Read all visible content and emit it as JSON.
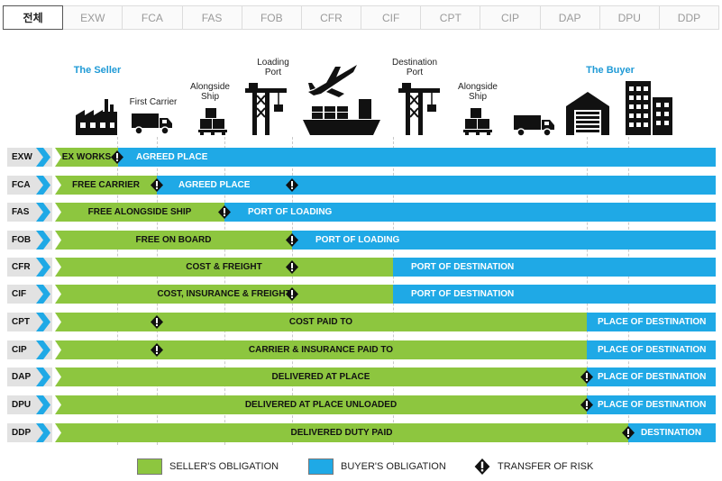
{
  "tabs": [
    "전체",
    "EXW",
    "FCA",
    "FAS",
    "FOB",
    "CFR",
    "CIF",
    "CPT",
    "CIP",
    "DAP",
    "DPU",
    "DDP"
  ],
  "header": {
    "seller": "The Seller",
    "first_carrier": "First Carrier",
    "alongside_ship_1": "Alongside Ship",
    "loading_port": "Loading Port",
    "destination_port": "Destination Port",
    "alongside_ship_2": "Alongside Ship",
    "buyer": "The Buyer"
  },
  "rows": [
    {
      "code": "EXW",
      "seller": "EX WORKS",
      "buyer": "AGREED PLACE"
    },
    {
      "code": "FCA",
      "seller": "FREE CARRIER",
      "buyer": "AGREED PLACE"
    },
    {
      "code": "FAS",
      "seller": "FREE ALONGSIDE SHIP",
      "buyer": "PORT OF LOADING"
    },
    {
      "code": "FOB",
      "seller": "FREE  ON BOARD",
      "buyer": "PORT OF LOADING"
    },
    {
      "code": "CFR",
      "seller": "COST & FREIGHT",
      "buyer": "PORT OF DESTINATION"
    },
    {
      "code": "CIF",
      "seller": "COST, INSURANCE & FREIGHT",
      "buyer": "PORT OF DESTINATION"
    },
    {
      "code": "CPT",
      "seller": "COST PAID TO",
      "buyer": "PLACE OF DESTINATION"
    },
    {
      "code": "CIP",
      "seller": "CARRIER & INSURANCE PAID TO",
      "buyer": "PLACE OF DESTINATION"
    },
    {
      "code": "DAP",
      "seller": "DELIVERED AT PLACE",
      "buyer": "PLACE OF DESTINATION"
    },
    {
      "code": "DPU",
      "seller": "DELIVERED AT PLACE UNLOADED",
      "buyer": "PLACE OF DESTINATION"
    },
    {
      "code": "DDP",
      "seller": "DELIVERED DUTY PAID",
      "buyer": "DESTINATION"
    }
  ],
  "legend": {
    "seller": "SELLER'S OBLIGATION",
    "buyer": "BUYER'S OBLIGATION",
    "risk": "TRANSFER OF RISK"
  },
  "colors": {
    "seller": "#8dc63f",
    "buyer": "#1fa9e6",
    "code_bg": "#e2e2e2",
    "party_label": "#1f9ad6"
  },
  "icons": [
    "factory-icon",
    "truck-icon",
    "pallet-boxes-icon",
    "crane-icon",
    "airplane-icon",
    "cargo-ship-icon",
    "crane-icon",
    "pallet-boxes-icon",
    "truck-icon",
    "warehouse-icon",
    "office-building-icon",
    "warning-diamond-icon"
  ]
}
